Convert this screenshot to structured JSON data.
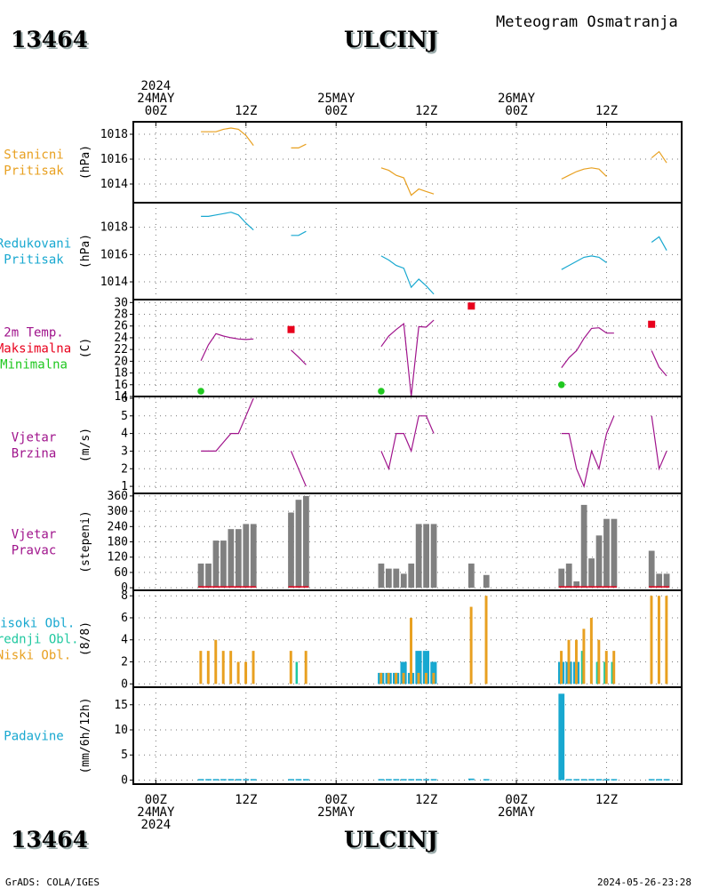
{
  "header": {
    "station_id": "13464",
    "station_name": "ULCINJ",
    "product": "Meteogram Osmatranja"
  },
  "footer": {
    "software": "GrADS: COLA/IGES",
    "timestamp": "2024-05-26-23:28"
  },
  "time_axis": {
    "top_labels": [
      {
        "t": 0,
        "lines": [
          "2024",
          "24MAY",
          "00Z"
        ]
      },
      {
        "t": 12,
        "lines": [
          "12Z"
        ]
      },
      {
        "t": 24,
        "lines": [
          "25MAY",
          "00Z"
        ]
      },
      {
        "t": 36,
        "lines": [
          "12Z"
        ]
      },
      {
        "t": 48,
        "lines": [
          "26MAY",
          "00Z"
        ]
      },
      {
        "t": 60,
        "lines": [
          "12Z"
        ]
      }
    ],
    "bottom_labels": [
      {
        "t": 0,
        "lines": [
          "00Z",
          "24MAY",
          "2024"
        ]
      },
      {
        "t": 12,
        "lines": [
          "12Z"
        ]
      },
      {
        "t": 24,
        "lines": [
          "00Z",
          "25MAY"
        ]
      },
      {
        "t": 36,
        "lines": [
          "12Z"
        ]
      },
      {
        "t": 48,
        "lines": [
          "00Z",
          "26MAY"
        ]
      },
      {
        "t": 60,
        "lines": [
          "12Z"
        ]
      }
    ],
    "range_hours": [
      -3,
      70
    ]
  },
  "colors": {
    "station_pressure": "#e8a020",
    "reduced_pressure": "#18a8d0",
    "temperature": "#a0148c",
    "max": "#e8001c",
    "min": "#20c820",
    "wind": "#a0148c",
    "wind_dir": "#808080",
    "high_cloud": "#18a8d0",
    "mid_cloud": "#20c8a0",
    "low_cloud": "#e8a020",
    "precip": "#18a8d0"
  },
  "chart_data": [
    {
      "name": "station_pressure",
      "type": "line",
      "labels": [
        "Stanicni",
        "Pritisak"
      ],
      "label_colors": [
        "station_pressure",
        "station_pressure"
      ],
      "ylabel": "(hPa)",
      "ylim": [
        1012.5,
        1019.0
      ],
      "yticks": [
        1014,
        1016,
        1018
      ],
      "series": [
        {
          "color": "station_pressure",
          "segments": [
            [
              [
                6,
                1018.2
              ],
              [
                7,
                1018.2
              ],
              [
                8,
                1018.2
              ],
              [
                9,
                1018.4
              ],
              [
                10,
                1018.5
              ],
              [
                11,
                1018.4
              ],
              [
                12,
                1017.9
              ],
              [
                13,
                1017.1
              ]
            ],
            [
              [
                18,
                1016.9
              ],
              [
                19,
                1016.9
              ],
              [
                20,
                1017.2
              ]
            ],
            [
              [
                30,
                1015.3
              ],
              [
                31,
                1015.1
              ],
              [
                32,
                1014.7
              ],
              [
                33,
                1014.5
              ],
              [
                34,
                1013.1
              ],
              [
                35,
                1013.6
              ],
              [
                36,
                1013.4
              ],
              [
                37,
                1013.2
              ]
            ],
            [
              [
                54,
                1014.4
              ],
              [
                55,
                1014.7
              ],
              [
                56,
                1015.0
              ],
              [
                57,
                1015.2
              ],
              [
                58,
                1015.3
              ],
              [
                59,
                1015.2
              ],
              [
                60,
                1014.6
              ]
            ],
            [
              [
                66,
                1016.1
              ],
              [
                67,
                1016.6
              ],
              [
                68,
                1015.7
              ]
            ]
          ]
        }
      ]
    },
    {
      "name": "reduced_pressure",
      "type": "line",
      "labels": [
        "Redukovani",
        "Pritisak"
      ],
      "label_colors": [
        "reduced_pressure",
        "reduced_pressure"
      ],
      "ylabel": "(hPa)",
      "ylim": [
        1012.7,
        1019.8
      ],
      "yticks": [
        1014,
        1016,
        1018
      ],
      "series": [
        {
          "color": "reduced_pressure",
          "segments": [
            [
              [
                6,
                1018.8
              ],
              [
                7,
                1018.8
              ],
              [
                8,
                1018.9
              ],
              [
                9,
                1019.0
              ],
              [
                10,
                1019.1
              ],
              [
                11,
                1018.9
              ],
              [
                12,
                1018.3
              ],
              [
                13,
                1017.8
              ]
            ],
            [
              [
                18,
                1017.4
              ],
              [
                19,
                1017.4
              ],
              [
                20,
                1017.7
              ]
            ],
            [
              [
                30,
                1015.9
              ],
              [
                31,
                1015.6
              ],
              [
                32,
                1015.2
              ],
              [
                33,
                1015.0
              ],
              [
                34,
                1013.6
              ],
              [
                35,
                1014.2
              ],
              [
                36,
                1013.7
              ],
              [
                37,
                1013.1
              ]
            ],
            [
              [
                54,
                1014.9
              ],
              [
                55,
                1015.2
              ],
              [
                56,
                1015.5
              ],
              [
                57,
                1015.8
              ],
              [
                58,
                1015.9
              ],
              [
                59,
                1015.8
              ],
              [
                60,
                1015.4
              ]
            ],
            [
              [
                66,
                1016.9
              ],
              [
                67,
                1017.3
              ],
              [
                68,
                1016.3
              ]
            ]
          ]
        }
      ]
    },
    {
      "name": "temperature",
      "type": "line",
      "labels": [
        "2m Temp.",
        "Maksimalna",
        "Minimalna"
      ],
      "label_colors": [
        "temperature",
        "max",
        "min"
      ],
      "ylabel": "(C)",
      "ylim": [
        14,
        30.5
      ],
      "yticks": [
        14,
        16,
        18,
        20,
        22,
        24,
        26,
        28,
        30
      ],
      "series": [
        {
          "color": "temperature",
          "segments": [
            [
              [
                6,
                20.1
              ],
              [
                7,
                22.8
              ],
              [
                8,
                24.7
              ],
              [
                9,
                24.3
              ],
              [
                10,
                24.0
              ],
              [
                11,
                23.8
              ],
              [
                12,
                23.7
              ],
              [
                13,
                23.8
              ]
            ],
            [
              [
                18,
                21.9
              ],
              [
                19,
                20.7
              ],
              [
                20,
                19.4
              ]
            ],
            [
              [
                30,
                22.5
              ],
              [
                31,
                24.3
              ],
              [
                32,
                25.4
              ],
              [
                33,
                26.4
              ],
              [
                34,
                14.0
              ],
              [
                35,
                25.9
              ],
              [
                36,
                25.8
              ],
              [
                37,
                27.0
              ]
            ],
            [
              [
                54,
                18.9
              ],
              [
                55,
                20.6
              ],
              [
                56,
                21.8
              ],
              [
                57,
                23.9
              ],
              [
                58,
                25.6
              ],
              [
                59,
                25.7
              ],
              [
                60,
                24.8
              ],
              [
                61,
                24.8
              ]
            ],
            [
              [
                66,
                21.8
              ],
              [
                67,
                19.0
              ],
              [
                68,
                17.5
              ]
            ]
          ]
        }
      ],
      "max_points": [
        [
          18,
          25.4
        ],
        [
          42,
          29.4
        ],
        [
          66,
          26.3
        ]
      ],
      "min_points": [
        [
          6,
          14.9
        ],
        [
          30,
          14.9
        ],
        [
          54,
          16.0
        ]
      ]
    },
    {
      "name": "wind_speed",
      "type": "line",
      "labels": [
        "Vjetar",
        "Brzina"
      ],
      "label_colors": [
        "wind",
        "wind"
      ],
      "ylabel": "(m/s)",
      "ylim": [
        0.6,
        6.1
      ],
      "yticks": [
        1,
        2,
        3,
        4,
        5,
        6
      ],
      "series": [
        {
          "color": "wind",
          "segments": [
            [
              [
                6,
                3
              ],
              [
                7,
                3
              ],
              [
                8,
                3
              ],
              [
                9,
                3.5
              ],
              [
                10,
                4
              ],
              [
                11,
                4
              ],
              [
                12,
                5
              ],
              [
                13,
                6
              ]
            ],
            [
              [
                18,
                3
              ],
              [
                19,
                2
              ],
              [
                20,
                1
              ]
            ],
            [
              [
                30,
                3
              ],
              [
                31,
                2
              ],
              [
                32,
                4
              ],
              [
                33,
                4
              ],
              [
                34,
                3
              ],
              [
                35,
                5
              ],
              [
                36,
                5
              ],
              [
                37,
                4
              ]
            ],
            [
              [
                54,
                4
              ],
              [
                55,
                4
              ],
              [
                56,
                2
              ],
              [
                57,
                1
              ],
              [
                58,
                3
              ],
              [
                59,
                2
              ],
              [
                60,
                4
              ],
              [
                61,
                5
              ]
            ],
            [
              [
                66,
                5
              ],
              [
                67,
                2
              ],
              [
                68,
                3
              ]
            ]
          ]
        }
      ]
    },
    {
      "name": "wind_direction",
      "type": "bar",
      "labels": [
        "Vjetar",
        "Pravac"
      ],
      "label_colors": [
        "wind",
        "wind"
      ],
      "ylabel": "(stepeni)",
      "ylim": [
        -10,
        370
      ],
      "yticks": [
        0,
        60,
        120,
        180,
        240,
        300,
        360
      ],
      "bar_width_hours": 0.8,
      "series": [
        {
          "color": "wind_dir",
          "x": [
            6,
            7,
            8,
            9,
            10,
            11,
            12,
            13,
            18,
            19,
            20,
            30,
            31,
            32,
            33,
            34,
            35,
            36,
            37,
            42,
            44,
            54,
            55,
            56,
            57,
            58,
            59,
            60,
            61,
            66,
            67,
            68
          ],
          "values": [
            95,
            95,
            185,
            185,
            230,
            230,
            250,
            250,
            295,
            345,
            360,
            95,
            75,
            75,
            55,
            95,
            250,
            250,
            250,
            95,
            50,
            75,
            95,
            25,
            325,
            115,
            205,
            270,
            270,
            145,
            55,
            55
          ]
        }
      ],
      "baseline": {
        "color": "max",
        "segments": [
          [
            6,
            13
          ],
          [
            18,
            20
          ],
          [
            54,
            61
          ],
          [
            66,
            68
          ]
        ]
      }
    },
    {
      "name": "clouds",
      "type": "bar",
      "labels": [
        "Visoki Obl.",
        "Srednji Obl.",
        "Niski Obl."
      ],
      "label_colors": [
        "high_cloud",
        "mid_cloud",
        "low_cloud"
      ],
      "ylabel": "(8/8)",
      "ylim": [
        -0.3,
        8.5
      ],
      "yticks": [
        0,
        2,
        4,
        6,
        8
      ],
      "series": [
        {
          "name": "Visoki Obl.",
          "color": "high_cloud",
          "width": 0.85,
          "offset": 0,
          "x": [
            30,
            31,
            32,
            33,
            34,
            35,
            36,
            37,
            54,
            55,
            56
          ],
          "values": [
            1,
            1,
            1,
            2,
            1,
            3,
            3,
            2,
            2,
            2,
            2
          ]
        },
        {
          "name": "Srednji Obl.",
          "color": "mid_cloud",
          "width": 0.3,
          "offset": 0.05,
          "x": [
            19,
            57,
            59,
            60,
            61
          ],
          "values": [
            2,
            3,
            2,
            2,
            2
          ]
        },
        {
          "name": "Niski Obl.",
          "color": "low_cloud",
          "width": 0.35,
          "offset": 0.25,
          "x": [
            6,
            7,
            8,
            9,
            10,
            11,
            12,
            13,
            18,
            20,
            30,
            31,
            32,
            33,
            34,
            35,
            36,
            37,
            42,
            44,
            54,
            55,
            56,
            57,
            58,
            59,
            60,
            61,
            66,
            67,
            68
          ],
          "values": [
            3,
            3,
            4,
            3,
            3,
            2,
            2,
            3,
            3,
            3,
            1,
            1,
            1,
            1,
            6,
            1,
            1,
            1,
            7,
            8,
            3,
            4,
            4,
            5,
            6,
            4,
            3,
            3,
            8,
            8,
            8
          ]
        }
      ]
    },
    {
      "name": "precipitation",
      "type": "bar",
      "labels": [
        "Padavine"
      ],
      "label_colors": [
        "precip"
      ],
      "ylabel": "(mm/6h/12h)",
      "ylim": [
        -0.8,
        18.5
      ],
      "yticks": [
        0,
        5,
        10,
        15
      ],
      "series": [
        {
          "color": "precip",
          "bar_width_hours": 0.8,
          "x": [
            6,
            7,
            8,
            9,
            10,
            11,
            12,
            13,
            18,
            19,
            20,
            30,
            31,
            32,
            33,
            34,
            35,
            36,
            37,
            42,
            44,
            54,
            55,
            56,
            57,
            58,
            59,
            60,
            61,
            66,
            67,
            68
          ],
          "values": [
            0.2,
            0.2,
            0.2,
            0.2,
            0.2,
            0.2,
            0.2,
            0.2,
            0.2,
            0.2,
            0.2,
            0.2,
            0.2,
            0.2,
            0.2,
            0.2,
            0.2,
            0.2,
            0.2,
            0.3,
            0.2,
            17.2,
            0.2,
            0.2,
            0.2,
            0.2,
            0.2,
            0.2,
            0.2,
            0.2,
            0.2,
            0.2
          ]
        }
      ]
    }
  ]
}
